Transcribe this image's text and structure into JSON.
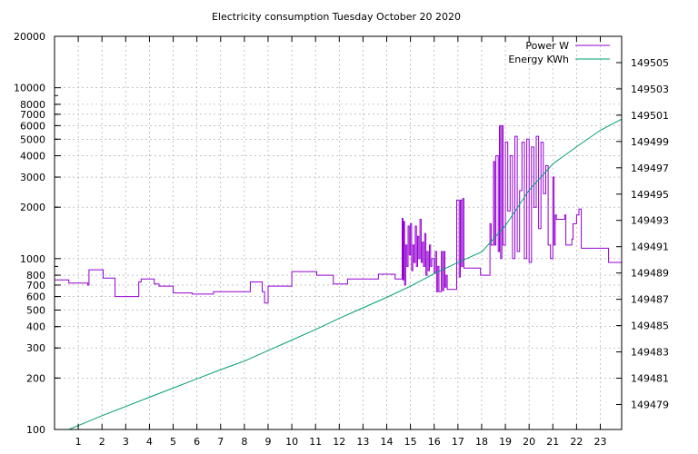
{
  "chart_data": {
    "type": "line",
    "title": "Electricity consumption Tuesday October 20 2020",
    "xlabel": "",
    "ylabel": "",
    "y2label": "",
    "grid": true,
    "legend_position": "top-right",
    "x_range": [
      0,
      23.9
    ],
    "x_ticks": [
      "1",
      "2",
      "3",
      "4",
      "5",
      "6",
      "7",
      "8",
      "9",
      "10",
      "11",
      "12",
      "13",
      "14",
      "15",
      "16",
      "17",
      "18",
      "19",
      "20",
      "21",
      "22",
      "23"
    ],
    "y_scale": "log",
    "y_range": [
      100,
      20000
    ],
    "y_ticks": [
      "100",
      "200",
      "300",
      "400",
      "500",
      "600",
      "700",
      "800",
      "1000",
      "2000",
      "3000",
      "4000",
      "5000",
      "6000",
      "7000",
      "8000",
      "10000",
      "20000"
    ],
    "y2_range": [
      149477.1,
      149507
    ],
    "y2_ticks": [
      "149479",
      "149481",
      "149483",
      "149485",
      "149487",
      "149489",
      "149491",
      "149493",
      "149495",
      "149497",
      "149499",
      "149501",
      "149503",
      "149505"
    ],
    "series": [
      {
        "name": "Power W",
        "axis": "left",
        "color": "#9400d3",
        "step": true,
        "points": [
          [
            0,
            750
          ],
          [
            0.6,
            720
          ],
          [
            1.4,
            700
          ],
          [
            1.45,
            860
          ],
          [
            2.0,
            860
          ],
          [
            2.05,
            770
          ],
          [
            2.5,
            770
          ],
          [
            2.55,
            600
          ],
          [
            3.5,
            600
          ],
          [
            3.55,
            730
          ],
          [
            3.65,
            760
          ],
          [
            4.15,
            760
          ],
          [
            4.2,
            710
          ],
          [
            4.4,
            690
          ],
          [
            4.8,
            690
          ],
          [
            4.9,
            690
          ],
          [
            5.0,
            630
          ],
          [
            5.8,
            620
          ],
          [
            6.6,
            620
          ],
          [
            6.7,
            640
          ],
          [
            8.2,
            640
          ],
          [
            8.25,
            730
          ],
          [
            8.7,
            730
          ],
          [
            8.75,
            640
          ],
          [
            8.85,
            550
          ],
          [
            8.95,
            550
          ],
          [
            9.0,
            690
          ],
          [
            9.9,
            690
          ],
          [
            10.0,
            840
          ],
          [
            11.0,
            840
          ],
          [
            11.05,
            800
          ],
          [
            11.7,
            800
          ],
          [
            11.75,
            710
          ],
          [
            12.3,
            710
          ],
          [
            12.35,
            760
          ],
          [
            13.6,
            760
          ],
          [
            13.65,
            810
          ],
          [
            14.3,
            810
          ],
          [
            14.35,
            760
          ],
          [
            14.6,
            760
          ],
          [
            14.65,
            1720
          ],
          [
            14.68,
            750
          ],
          [
            14.72,
            1650
          ],
          [
            14.75,
            700
          ],
          [
            14.8,
            1200
          ],
          [
            14.85,
            900
          ],
          [
            14.9,
            1550
          ],
          [
            14.95,
            1050
          ],
          [
            15.0,
            1600
          ],
          [
            15.05,
            850
          ],
          [
            15.1,
            1200
          ],
          [
            15.15,
            950
          ],
          [
            15.2,
            1550
          ],
          [
            15.25,
            900
          ],
          [
            15.3,
            1350
          ],
          [
            15.35,
            1000
          ],
          [
            15.4,
            1700
          ],
          [
            15.45,
            950
          ],
          [
            15.5,
            1250
          ],
          [
            15.55,
            900
          ],
          [
            15.6,
            1400
          ],
          [
            15.65,
            800
          ],
          [
            15.7,
            1100
          ],
          [
            15.75,
            850
          ],
          [
            15.8,
            1200
          ],
          [
            15.85,
            900
          ],
          [
            15.9,
            1000
          ],
          [
            16.0,
            820
          ],
          [
            16.05,
            1100
          ],
          [
            16.1,
            640
          ],
          [
            16.15,
            900
          ],
          [
            16.2,
            640
          ],
          [
            16.3,
            1100
          ],
          [
            16.35,
            650
          ],
          [
            16.4,
            1100
          ],
          [
            16.45,
            680
          ],
          [
            16.5,
            800
          ],
          [
            16.55,
            660
          ],
          [
            16.9,
            660
          ],
          [
            16.95,
            2200
          ],
          [
            17.05,
            780
          ],
          [
            17.1,
            2200
          ],
          [
            17.15,
            900
          ],
          [
            17.2,
            2250
          ],
          [
            17.25,
            880
          ],
          [
            17.9,
            880
          ],
          [
            17.95,
            800
          ],
          [
            18.3,
            800
          ],
          [
            18.35,
            1600
          ],
          [
            18.4,
            1200
          ],
          [
            18.5,
            3700
          ],
          [
            18.55,
            1200
          ],
          [
            18.6,
            4000
          ],
          [
            18.7,
            1100
          ],
          [
            18.75,
            6000
          ],
          [
            18.8,
            1000
          ],
          [
            18.85,
            6000
          ],
          [
            18.9,
            1200
          ],
          [
            19.0,
            4800
          ],
          [
            19.1,
            1900
          ],
          [
            19.2,
            4000
          ],
          [
            19.3,
            1000
          ],
          [
            19.4,
            5200
          ],
          [
            19.5,
            1100
          ],
          [
            19.6,
            2500
          ],
          [
            19.7,
            4800
          ],
          [
            19.8,
            1000
          ],
          [
            19.9,
            5000
          ],
          [
            20.0,
            950
          ],
          [
            20.1,
            4500
          ],
          [
            20.2,
            2000
          ],
          [
            20.3,
            5200
          ],
          [
            20.4,
            1500
          ],
          [
            20.5,
            4800
          ],
          [
            20.6,
            2400
          ],
          [
            20.7,
            3500
          ],
          [
            20.8,
            1200
          ],
          [
            20.9,
            1000
          ],
          [
            21.0,
            3000
          ],
          [
            21.05,
            1200
          ],
          [
            21.1,
            1800
          ],
          [
            21.15,
            1700
          ],
          [
            21.5,
            1800
          ],
          [
            21.55,
            1200
          ],
          [
            21.8,
            1300
          ],
          [
            21.85,
            1600
          ],
          [
            22.0,
            1800
          ],
          [
            22.1,
            1950
          ],
          [
            22.2,
            1150
          ],
          [
            23.3,
            1150
          ],
          [
            23.35,
            950
          ],
          [
            23.9,
            950
          ]
        ]
      },
      {
        "name": "Energy KWh",
        "axis": "right",
        "color": "#009e73",
        "step": false,
        "points": [
          [
            0.6,
            149477.1
          ],
          [
            1.0,
            149477.4
          ],
          [
            2.0,
            149478.15
          ],
          [
            3.0,
            149478.85
          ],
          [
            4.0,
            149479.55
          ],
          [
            5.0,
            149480.25
          ],
          [
            6.0,
            149480.95
          ],
          [
            7.0,
            149481.65
          ],
          [
            8.0,
            149482.3
          ],
          [
            9.0,
            149483.1
          ],
          [
            10.0,
            149483.9
          ],
          [
            11.0,
            149484.7
          ],
          [
            12.0,
            149485.55
          ],
          [
            13.0,
            149486.35
          ],
          [
            14.0,
            149487.15
          ],
          [
            15.0,
            149488.0
          ],
          [
            16.0,
            149488.95
          ],
          [
            17.0,
            149489.8
          ],
          [
            18.0,
            149490.6
          ],
          [
            19.0,
            149492.6
          ],
          [
            20.0,
            149495.3
          ],
          [
            21.0,
            149497.3
          ],
          [
            22.0,
            149498.6
          ],
          [
            23.0,
            149499.85
          ],
          [
            23.9,
            149500.7
          ]
        ]
      }
    ]
  }
}
